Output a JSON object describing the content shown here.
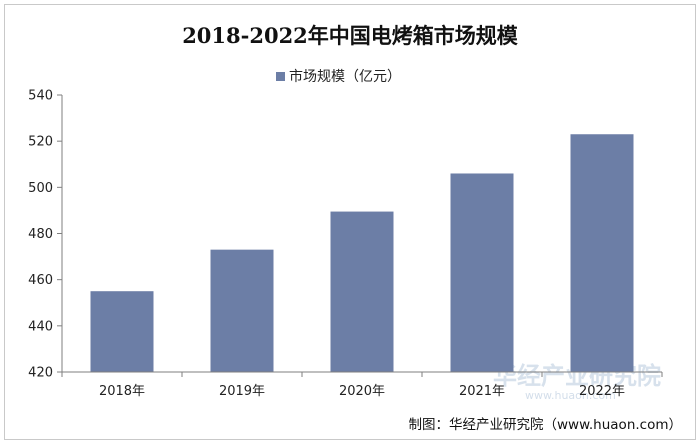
{
  "chart_data": {
    "type": "bar",
    "title": "2018-2022年中国电烤箱市场规模",
    "categories": [
      "2018年",
      "2019年",
      "2020年",
      "2021年",
      "2022年"
    ],
    "series": [
      {
        "name": "市场规模（亿元）",
        "values": [
          455,
          473,
          489.5,
          506,
          523
        ]
      }
    ],
    "yticks": [
      "420",
      "440",
      "460",
      "480",
      "500",
      "520",
      "540"
    ],
    "ylim": [
      420,
      540
    ],
    "legend": "top-center",
    "grid": false,
    "colors": {
      "bar": "#6c7ea6",
      "axis": "#7f7f7f"
    }
  },
  "watermark": {
    "brand": "华经产业研究院",
    "url": "www.huaon.com"
  },
  "credit": "制图：华经产业研究院（www.huaon.com）"
}
